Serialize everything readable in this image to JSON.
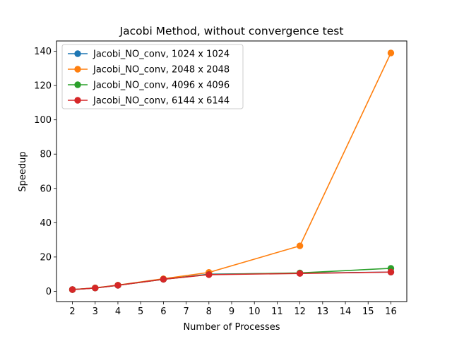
{
  "chart_data": {
    "type": "line",
    "title": "Jacobi Method, without convergence test",
    "xlabel": "Number of Processes",
    "ylabel": "Speedup",
    "x_ticks": [
      2,
      3,
      4,
      5,
      6,
      7,
      8,
      9,
      10,
      11,
      12,
      13,
      14,
      15,
      16
    ],
    "y_ticks": [
      0,
      20,
      40,
      60,
      80,
      100,
      120,
      140
    ],
    "xlim": [
      1.3,
      16.7
    ],
    "ylim": [
      -6,
      146
    ],
    "grid": false,
    "legend_position": "top-left",
    "x": [
      2,
      3,
      4,
      6,
      8,
      12,
      16
    ],
    "series": [
      {
        "name": "Jacobi_NO_conv, 1024 x 1024",
        "color": "#1f77b4",
        "marker": "circle",
        "values": [
          1.0,
          1.9,
          3.5,
          7.0,
          10.0,
          10.5,
          11.2
        ]
      },
      {
        "name": "Jacobi_NO_conv, 2048 x 2048",
        "color": "#ff7f0e",
        "marker": "circle",
        "values": [
          1.0,
          2.0,
          3.6,
          7.3,
          11.0,
          26.5,
          139.0
        ]
      },
      {
        "name": "Jacobi_NO_conv, 4096 x 4096",
        "color": "#2ca02c",
        "marker": "circle",
        "values": [
          1.0,
          1.9,
          3.5,
          7.0,
          9.8,
          10.7,
          13.4
        ]
      },
      {
        "name": "Jacobi_NO_conv, 6144 x 6144",
        "color": "#d62728",
        "marker": "circle",
        "values": [
          1.0,
          1.9,
          3.5,
          7.0,
          9.7,
          10.4,
          11.2
        ]
      }
    ]
  }
}
